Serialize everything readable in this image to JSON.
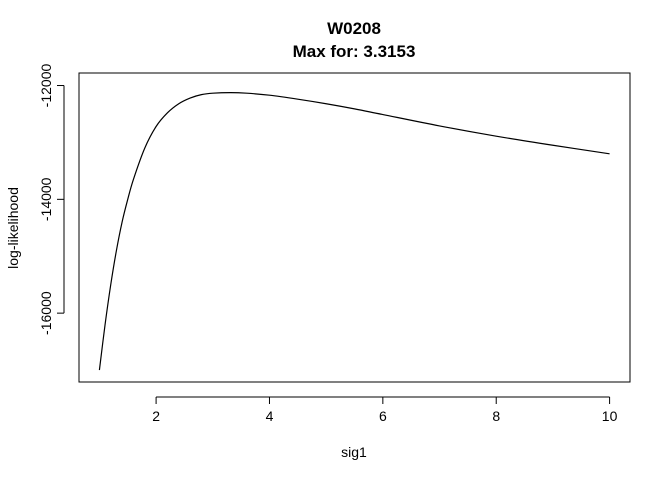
{
  "chart_data": {
    "type": "line",
    "title": "W0208",
    "subtitle": "Max for: 3.3153",
    "xlabel": "sig1",
    "ylabel": "log-likelihood",
    "xlim": [
      0.64,
      10.36
    ],
    "ylim": [
      -17210,
      -11780
    ],
    "xticks": [
      2,
      4,
      6,
      8,
      10
    ],
    "xtick_labels": [
      "2",
      "4",
      "6",
      "8",
      "10"
    ],
    "yticks": [
      -16000,
      -14000,
      -12000
    ],
    "ytick_labels": [
      "-16000",
      "-14000",
      "-12000"
    ],
    "grid": false,
    "legend": "none",
    "line_color": "#000000",
    "series": [
      {
        "x": [
          1.0,
          1.1,
          1.2,
          1.3,
          1.4,
          1.5,
          1.6,
          1.8,
          2.0,
          2.2,
          2.4,
          2.6,
          2.8,
          3.0,
          3.3153,
          3.6,
          4.0,
          4.5,
          5.0,
          5.5,
          6.0,
          7.0,
          8.0,
          9.0,
          10.0
        ],
        "y": [
          -17000,
          -16200,
          -15500,
          -14900,
          -14400,
          -14000,
          -13650,
          -13100,
          -12720,
          -12480,
          -12320,
          -12220,
          -12160,
          -12135,
          -12125,
          -12135,
          -12170,
          -12240,
          -12320,
          -12410,
          -12510,
          -12710,
          -12890,
          -13050,
          -13200
        ]
      }
    ]
  }
}
